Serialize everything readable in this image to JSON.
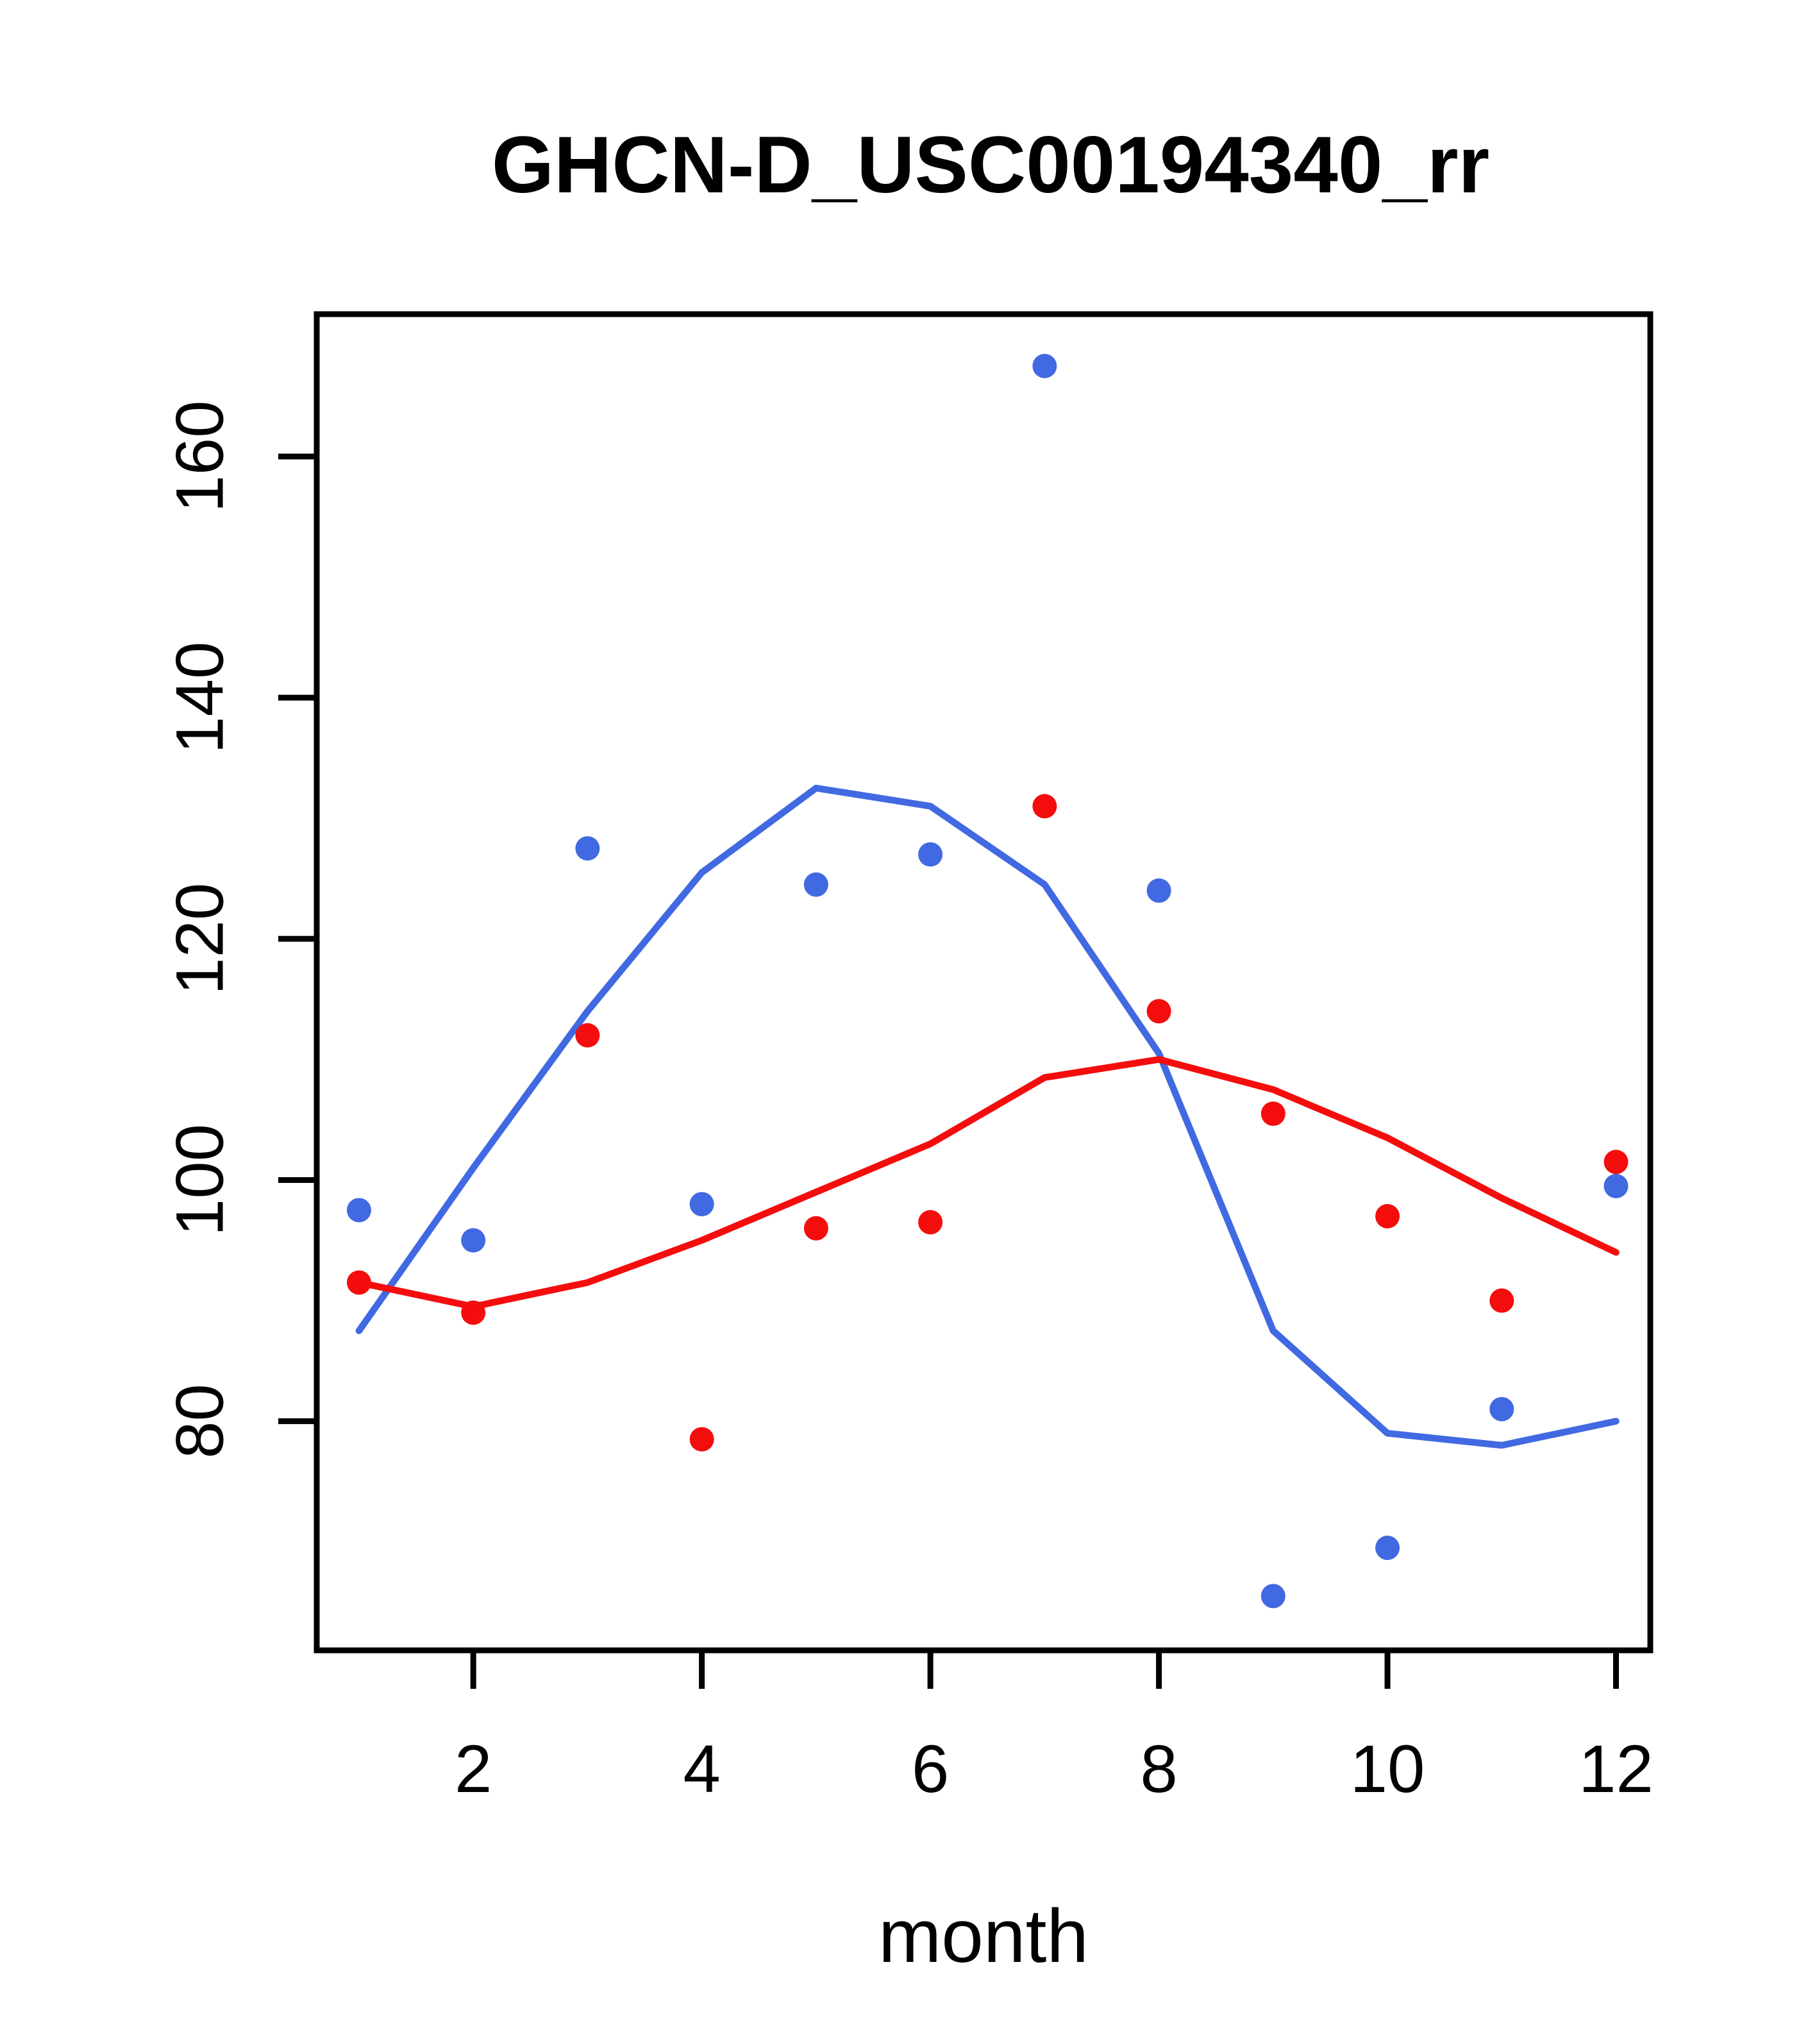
{
  "chart_data": {
    "type": "scatter",
    "title": "GHCN-D_USC00194340_rr",
    "xlabel": "month",
    "ylabel": "",
    "x": [
      1,
      2,
      3,
      4,
      5,
      6,
      7,
      8,
      9,
      10,
      11,
      12
    ],
    "series": [
      {
        "name": "blue points",
        "kind": "points",
        "color": "#4169e1",
        "values": [
          97.5,
          95,
          127.5,
          98,
          124.5,
          127,
          167.5,
          124,
          65.5,
          69.5,
          81,
          99.5
        ]
      },
      {
        "name": "blue smooth line",
        "kind": "line",
        "color": "#4169e1",
        "values": [
          87.5,
          101,
          114,
          125.5,
          132.5,
          131,
          124.5,
          110.5,
          87.5,
          79,
          78,
          80
        ]
      },
      {
        "name": "red points",
        "kind": "points",
        "color": "#f40d0d",
        "values": [
          91.5,
          89,
          112,
          78.5,
          96,
          96.5,
          131,
          114,
          105.5,
          97,
          90,
          101.5
        ]
      },
      {
        "name": "red smooth line",
        "kind": "line",
        "color": "#f40d0d",
        "values": [
          91.5,
          89.5,
          91.5,
          95,
          99,
          103,
          108.5,
          110,
          107.5,
          103.5,
          98.5,
          94
        ]
      }
    ],
    "xticks": [
      2,
      4,
      6,
      8,
      10,
      12
    ],
    "yticks": [
      80,
      100,
      120,
      140,
      160
    ],
    "xlim": [
      0.63,
      12.3
    ],
    "ylim": [
      61,
      171.8
    ],
    "grid": false,
    "legend": "none"
  },
  "colors": {
    "blue": "#4169e1",
    "red": "#f40d0d",
    "axis": "#000000",
    "background": "#ffffff"
  }
}
